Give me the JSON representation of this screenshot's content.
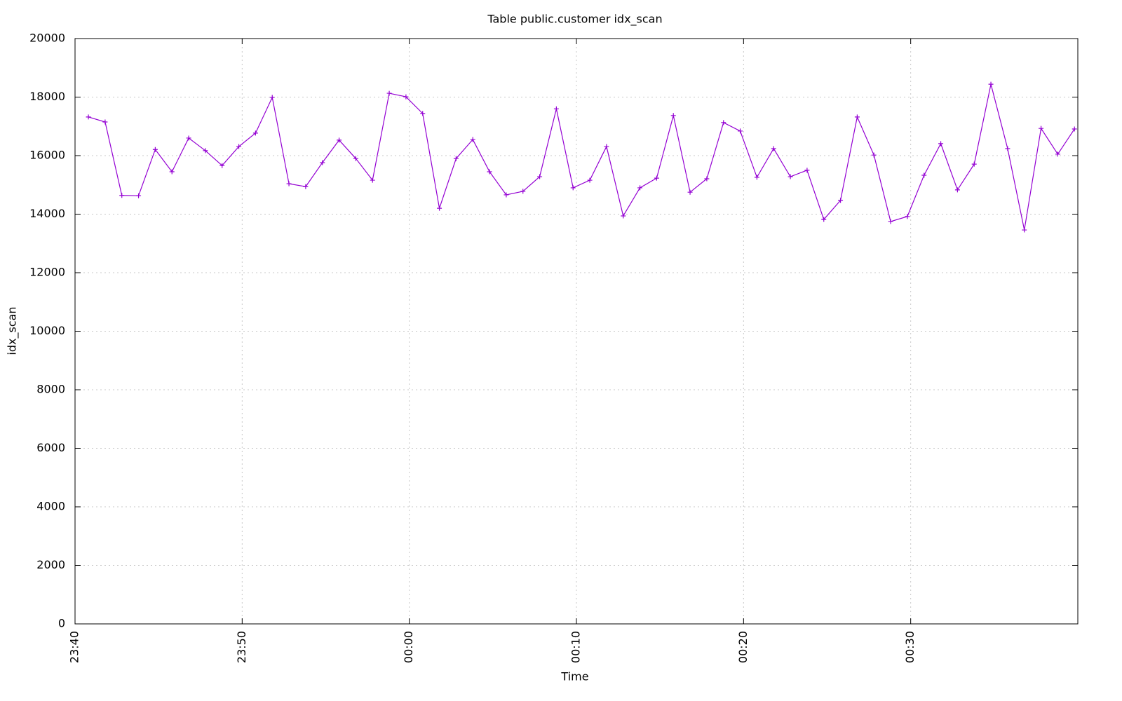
{
  "chart_data": {
    "type": "line",
    "title": "Table public.customer idx_scan",
    "xlabel": "Time",
    "ylabel": "idx_scan",
    "x": [
      0.8,
      1.8,
      2.8,
      3.8,
      4.8,
      5.8,
      6.8,
      7.8,
      8.8,
      9.8,
      10.8,
      11.8,
      12.8,
      13.8,
      14.8,
      15.8,
      16.8,
      17.8,
      18.8,
      19.8,
      20.8,
      21.8,
      22.8,
      23.8,
      24.8,
      25.8,
      26.8,
      27.8,
      28.8,
      29.8,
      30.8,
      31.8,
      32.8,
      33.8,
      34.8,
      35.8,
      36.8,
      37.8,
      38.8,
      39.8,
      40.8,
      41.8,
      42.8,
      43.8,
      44.8,
      45.8,
      46.8,
      47.8,
      48.8,
      49.8,
      50.8,
      51.8,
      52.8,
      53.8,
      54.8,
      55.8,
      56.8,
      57.8,
      58.8,
      59.8
    ],
    "series": [
      {
        "name": "idx_scan",
        "color": "#9400d3",
        "values": [
          17320,
          17150,
          14640,
          14630,
          16210,
          15450,
          16600,
          16170,
          15660,
          16310,
          16770,
          17990,
          15040,
          14940,
          15760,
          16530,
          15900,
          15160,
          18130,
          18010,
          17440,
          14200,
          15900,
          16550,
          15450,
          14660,
          14780,
          15280,
          17600,
          14900,
          15160,
          16310,
          13940,
          14900,
          15230,
          17370,
          14750,
          15210,
          17130,
          16840,
          15260,
          16240,
          15280,
          15500,
          13820,
          14470,
          17320,
          16020,
          13750,
          13920,
          15330,
          16410,
          14830,
          15710,
          18440,
          16240,
          13460,
          16930,
          16050,
          16910
        ]
      }
    ],
    "xlim": [
      0,
      60
    ],
    "xticks": [
      {
        "value": 0,
        "label": "23:40"
      },
      {
        "value": 10,
        "label": "23:50"
      },
      {
        "value": 20,
        "label": "00:00"
      },
      {
        "value": 30,
        "label": "00:10"
      },
      {
        "value": 40,
        "label": "00:20"
      },
      {
        "value": 50,
        "label": "00:30"
      }
    ],
    "ylim": [
      0,
      20000
    ],
    "yticks": [
      0,
      2000,
      4000,
      6000,
      8000,
      10000,
      12000,
      14000,
      16000,
      18000,
      20000
    ],
    "grid": true,
    "marker": "plus"
  }
}
